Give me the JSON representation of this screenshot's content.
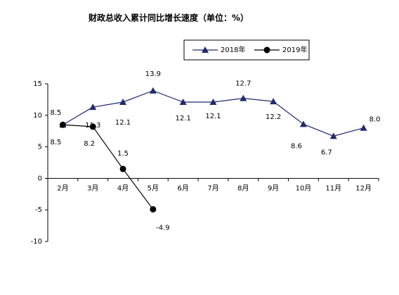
{
  "chart_data": {
    "type": "line",
    "title": "财政总收入累计同比增长速度（单位：%）",
    "categories": [
      "2月",
      "3月",
      "4月",
      "5月",
      "6月",
      "7月",
      "8月",
      "9月",
      "10月",
      "11月",
      "12月"
    ],
    "series": [
      {
        "name": "2018年",
        "color": "#1f2a6e",
        "marker": "triangle",
        "values": [
          8.5,
          11.3,
          12.1,
          13.9,
          12.1,
          12.1,
          12.7,
          12.2,
          8.6,
          6.7,
          8.0
        ],
        "value_labels": [
          "8.5",
          "11.3",
          "12.1",
          "13.9",
          "12.1",
          "12.1",
          "12.7",
          "12.2",
          "8.6",
          "6.7",
          "8.0"
        ]
      },
      {
        "name": "2019年",
        "color": "#000000",
        "marker": "circle",
        "values": [
          8.5,
          8.2,
          1.5,
          -4.9,
          null,
          null,
          null,
          null,
          null,
          null,
          null
        ]
      }
    ],
    "ylim": [
      -10,
      15
    ],
    "yticks": [
      -10,
      -5,
      0,
      5,
      10,
      15
    ],
    "grid": false
  }
}
